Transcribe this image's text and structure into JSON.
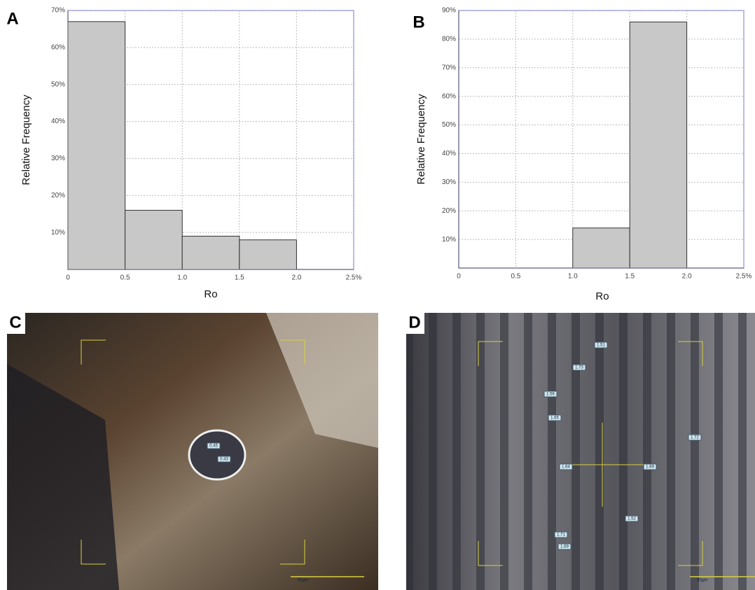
{
  "chart_data": [
    {
      "type": "histogram",
      "panel_label": "A",
      "x_label": "Ro",
      "y_label": "Relative Frequency",
      "bins": [
        0,
        0.5,
        1.0,
        1.5,
        2.0
      ],
      "values": [
        67,
        16,
        9,
        8
      ],
      "color": "#c8c8c8",
      "xlim": [
        0,
        2.5
      ],
      "xticks": [
        0,
        0.5,
        {
          "value": 1.0,
          "label": "1.0"
        },
        1.5,
        {
          "value": 2.0,
          "label": "2.0"
        },
        {
          "value": 2.5,
          "label": "2.5%"
        }
      ],
      "ylim": [
        0,
        70
      ],
      "yticks": [
        {
          "value": 10,
          "label": "10%"
        },
        {
          "value": 20,
          "label": "20%"
        },
        {
          "value": 30,
          "label": "30%"
        },
        {
          "value": 40,
          "label": "40%"
        },
        {
          "value": 50,
          "label": "50%"
        },
        {
          "value": 60,
          "label": "60%"
        },
        {
          "value": 70,
          "label": "70%"
        }
      ],
      "grid": true
    },
    {
      "type": "histogram",
      "panel_label": "B",
      "x_label": "Ro",
      "y_label": "Relative Frequency",
      "bins": [
        1.0,
        1.5,
        2.0
      ],
      "values": [
        14,
        86
      ],
      "color": "#c8c8c8",
      "xlim": [
        0,
        2.5
      ],
      "xticks": [
        0,
        0.5,
        {
          "value": 1.0,
          "label": "1.0"
        },
        1.5,
        {
          "value": 2.0,
          "label": "2.0"
        },
        {
          "value": 2.5,
          "label": "2.5%"
        }
      ],
      "ylim": [
        0,
        90
      ],
      "yticks": [
        {
          "value": 10,
          "label": "10%"
        },
        {
          "value": 20,
          "label": "20%"
        },
        {
          "value": 30,
          "label": "30%"
        },
        {
          "value": 40,
          "label": "40%"
        },
        {
          "value": 50,
          "label": "50%"
        },
        {
          "value": 60,
          "label": "60%"
        },
        {
          "value": 70,
          "label": "70%"
        },
        {
          "value": 80,
          "label": "80%"
        },
        {
          "value": 90,
          "label": "90%"
        }
      ],
      "grid": true
    }
  ],
  "images": [
    {
      "label": "C",
      "annotations": [
        "0.45",
        "0.43"
      ],
      "scale_label": "50µm"
    },
    {
      "label": "D",
      "annotations": [
        "1.51",
        "1.73",
        "1.56",
        "1.65",
        "1.72",
        "1.64",
        "1.69",
        "1.52",
        "1.71",
        "1.69"
      ],
      "scale_label": "50µm"
    }
  ]
}
